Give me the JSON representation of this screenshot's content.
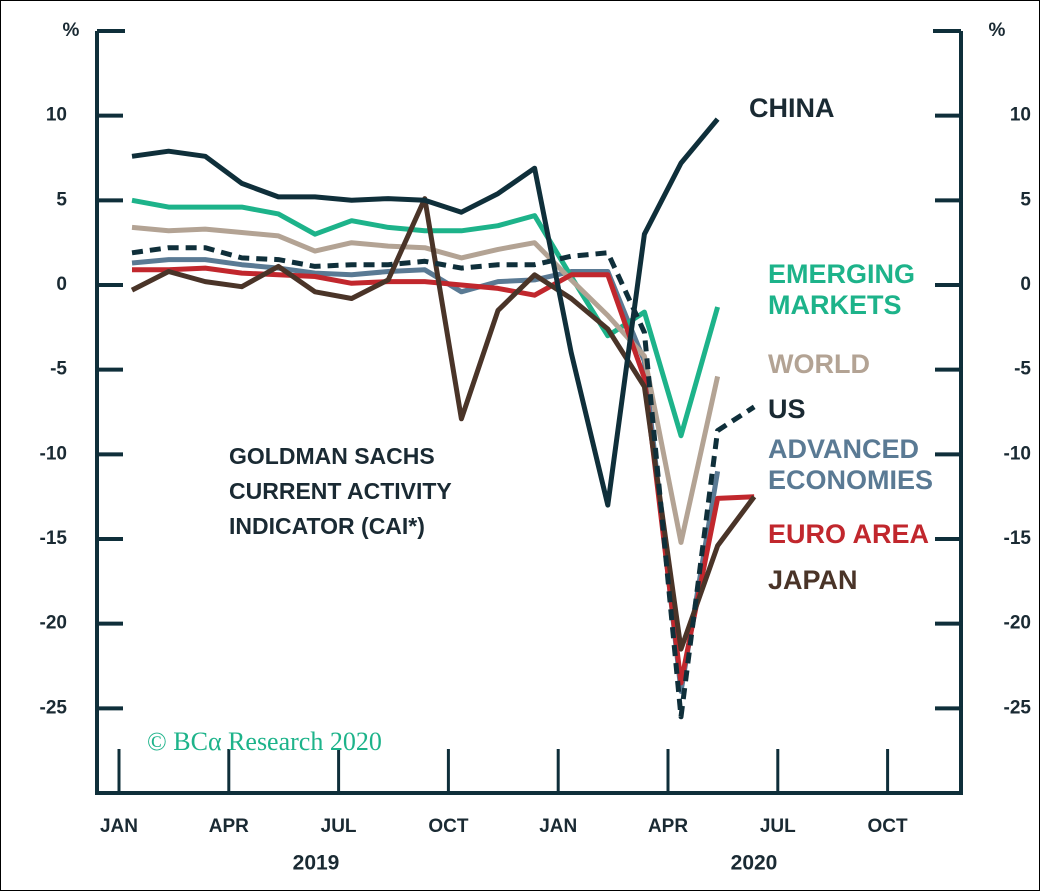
{
  "chart_data": {
    "type": "line",
    "y_unit": "%",
    "annotation": "GOLDMAN SACHS CURRENT ACTIVITY INDICATOR (CAI*)",
    "source": "© BCα Research 2020",
    "categories": [
      "JAN",
      null,
      null,
      "APR",
      null,
      null,
      "JUL",
      null,
      null,
      "OCT",
      null,
      null,
      "JAN",
      null,
      null,
      "APR",
      null,
      null,
      "JUL",
      null,
      null,
      "OCT",
      null,
      null
    ],
    "year_labels": [
      "2019",
      "2020"
    ],
    "ylim": [
      -30,
      15
    ],
    "yticks": [
      -25,
      -20,
      -15,
      -10,
      -5,
      0,
      5,
      10
    ],
    "y2lim": [
      -30,
      15
    ],
    "y2ticks": [
      -25,
      -20,
      -15,
      -10,
      -5,
      0,
      5,
      10
    ],
    "series": [
      {
        "name": "CHINA",
        "color": "#0f2f3a",
        "dash": false,
        "values": [
          7.6,
          7.9,
          7.6,
          6.0,
          5.2,
          5.2,
          5.0,
          5.1,
          5.0,
          4.3,
          5.4,
          6.9,
          -4.0,
          -13.0,
          3.0,
          7.2,
          9.8,
          null,
          null,
          null,
          null,
          null,
          null,
          null
        ]
      },
      {
        "name": "EMERGING MARKETS",
        "color": "#1db38a",
        "dash": false,
        "values": [
          5.0,
          4.6,
          4.6,
          4.6,
          4.2,
          3.0,
          3.8,
          3.4,
          3.2,
          3.2,
          3.5,
          4.1,
          0.5,
          -3.0,
          -1.6,
          -8.9,
          -1.3,
          null,
          null,
          null,
          null,
          null,
          null,
          null
        ]
      },
      {
        "name": "WORLD",
        "color": "#b3a394",
        "dash": false,
        "values": [
          3.4,
          3.2,
          3.3,
          3.1,
          2.9,
          2.0,
          2.5,
          2.3,
          2.2,
          1.6,
          2.1,
          2.5,
          0.3,
          -1.8,
          -4.2,
          -15.2,
          -5.4,
          null,
          null,
          null,
          null,
          null,
          null,
          null
        ]
      },
      {
        "name": "US",
        "color": "#0f2f3a",
        "dash": true,
        "values": [
          1.9,
          2.2,
          2.2,
          1.6,
          1.5,
          1.1,
          1.2,
          1.2,
          1.4,
          1.0,
          1.2,
          1.2,
          1.7,
          1.9,
          -2.8,
          -25.5,
          -8.6,
          -7.2,
          null,
          null,
          null,
          null,
          null,
          null
        ]
      },
      {
        "name": "ADVANCED ECONOMIES",
        "color": "#5a7a94",
        "dash": false,
        "values": [
          1.3,
          1.5,
          1.5,
          1.2,
          1.0,
          0.7,
          0.6,
          0.8,
          0.9,
          -0.4,
          0.2,
          0.3,
          0.8,
          0.8,
          -4.5,
          -24.0,
          -11.0,
          null,
          null,
          null,
          null,
          null,
          null,
          null
        ]
      },
      {
        "name": "EURO AREA",
        "color": "#c1272d",
        "dash": false,
        "values": [
          0.9,
          0.9,
          1.0,
          0.7,
          0.6,
          0.5,
          0.1,
          0.2,
          0.2,
          0.0,
          -0.2,
          -0.6,
          0.6,
          0.6,
          -5.5,
          -23.5,
          -12.6,
          -12.5,
          null,
          null,
          null,
          null,
          null,
          null
        ]
      },
      {
        "name": "JAPAN",
        "color": "#4a3428",
        "dash": false,
        "values": [
          -0.3,
          0.8,
          0.2,
          -0.1,
          1.1,
          -0.4,
          -0.8,
          0.3,
          5.1,
          -7.9,
          -1.5,
          0.6,
          -0.8,
          -2.6,
          -6.0,
          -21.5,
          -15.4,
          -12.5,
          null,
          null,
          null,
          null,
          null,
          null
        ]
      }
    ]
  }
}
